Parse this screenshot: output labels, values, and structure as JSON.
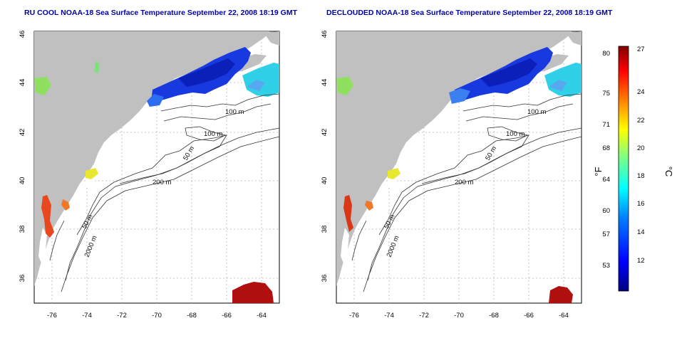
{
  "titles": {
    "left": "RU COOL NOAA-18 Sea Surface Temperature September 22, 2008 18:19 GMT",
    "right": "DECLOUDED NOAA-18 Sea Surface Temperature September 22, 2008 18:19 GMT"
  },
  "axes": {
    "x_ticks": [
      "-76",
      "-74",
      "-72",
      "-70",
      "-68",
      "-66",
      "-64"
    ],
    "y_ticks": [
      "46",
      "44",
      "42",
      "40",
      "38",
      "36"
    ],
    "lon_range": [
      -77,
      -63
    ],
    "lat_range": [
      35,
      46
    ]
  },
  "contours": {
    "labels": [
      "100 m",
      "100 m",
      "50 m",
      "200 m",
      "50 m",
      "2000 m"
    ]
  },
  "colorbar": {
    "unit_f": "°F",
    "unit_c": "°C",
    "f_ticks": [
      "80",
      "75",
      "71",
      "68",
      "64",
      "60",
      "57",
      "53"
    ],
    "c_ticks": [
      "27",
      "24",
      "22",
      "20",
      "18",
      "16",
      "14",
      "12"
    ],
    "colors": [
      "#00007f",
      "#0000ff",
      "#0080ff",
      "#00ffff",
      "#80ff80",
      "#ffff00",
      "#ff8000",
      "#ff0000",
      "#800000"
    ]
  },
  "colors": {
    "land": "#c0c0c0",
    "ocean": "#ffffff",
    "grid": "#b0b0b0",
    "contour": "#333333",
    "title": "#0000aa"
  }
}
